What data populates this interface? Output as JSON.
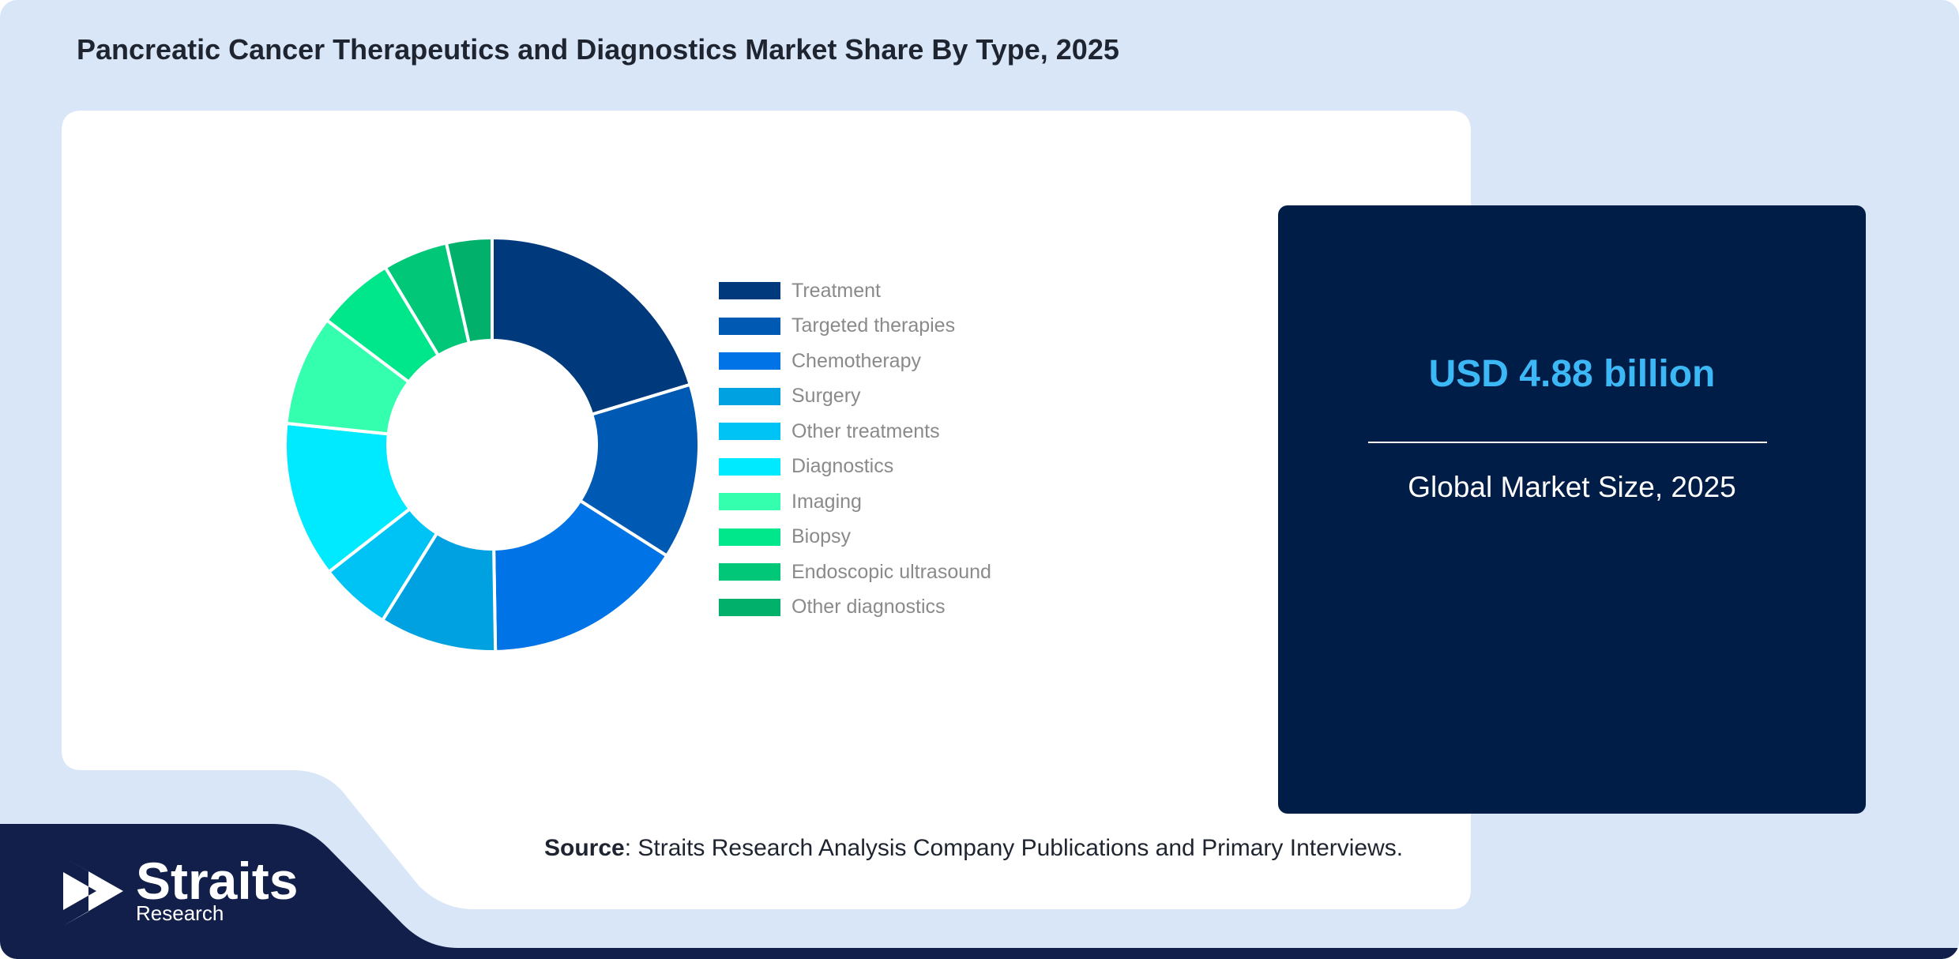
{
  "title": "Pancreatic Cancer Therapeutics and Diagnostics Market Share By Type, 2025",
  "kpi": {
    "value": "USD 4.88 billion",
    "label": "Global Market Size, 2025"
  },
  "source": {
    "label": "Source",
    "text": ": Straits Research Analysis Company Publications and Primary Interviews."
  },
  "logo": {
    "name": "Straits",
    "sub": "Research",
    "icon": "straits-arrow-icon"
  },
  "colors": {
    "background": "#d8e6f8",
    "card": "#001d47",
    "kpi_value": "#3bb8f5",
    "logo_band": "#121f4a"
  },
  "chart_data": {
    "type": "pie",
    "variant": "donut",
    "title": "",
    "legend_position": "right",
    "categories": [
      "Treatment",
      "Targeted therapies",
      "Chemotherapy",
      "Surgery",
      "Other treatments",
      "Diagnostics",
      "Imaging",
      "Biopsy",
      "Endoscopic ultrasound",
      "Other diagnostics"
    ],
    "values": [
      20,
      13.5,
      15.5,
      9,
      5.5,
      12,
      8.5,
      6,
      5,
      3.5
    ],
    "colors": [
      "#003a7d",
      "#0059b3",
      "#0073e6",
      "#00a1e0",
      "#00c3f5",
      "#00eaff",
      "#33ffaf",
      "#00e68a",
      "#00c878",
      "#00b06b"
    ]
  }
}
